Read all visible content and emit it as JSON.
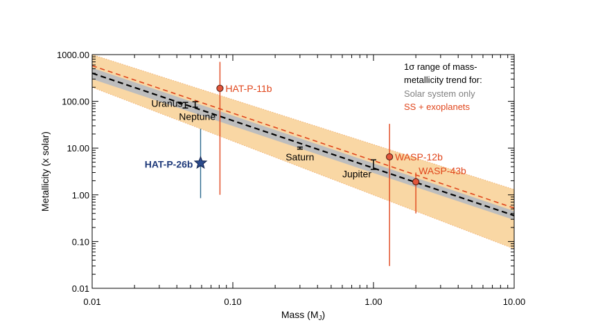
{
  "chart_data": {
    "type": "scatter",
    "title": "",
    "xlabel": "Mass (Mj)",
    "xlabel_main": "Mass (M",
    "xlabel_sub": "J",
    "xlabel_close": ")",
    "ylabel": "Metallicity (x solar)",
    "x_scale": "log",
    "y_scale": "log",
    "xlim": [
      0.01,
      10
    ],
    "ylim": [
      0.01,
      1000
    ],
    "x_ticks": [
      0.01,
      0.1,
      1,
      10
    ],
    "x_tick_labels": [
      "0.01",
      "0.10",
      "1.00",
      "10.00"
    ],
    "y_ticks": [
      0.01,
      0.1,
      1,
      10,
      100,
      1000
    ],
    "y_tick_labels": [
      "0.01",
      "0.10",
      "1.00",
      "10.00",
      "100.00",
      "1000.00"
    ],
    "legend": {
      "placement": "top-right",
      "lines": [
        "1σ range of mass-",
        "metallicity trend for:",
        "Solar system only",
        "SS + exoplanets"
      ],
      "line_colors": [
        "#000000",
        "#000000",
        "#808080",
        "#e0451b"
      ]
    },
    "trends": [
      {
        "name": "Solar system only",
        "color": "#000000",
        "band_color": "#bdbdbd",
        "x": [
          0.01,
          10
        ],
        "y": [
          400,
          0.36
        ],
        "band_low": [
          300,
          0.29
        ],
        "band_high": [
          520,
          0.45
        ]
      },
      {
        "name": "SS + exoplanets",
        "color": "#e0451b",
        "band_color": "#f9d7a4",
        "x": [
          0.01,
          10
        ],
        "y": [
          580,
          0.52
        ],
        "band_low": [
          200,
          0.07
        ],
        "band_high": [
          1000,
          1.3
        ]
      }
    ],
    "solar_system": [
      {
        "name": "Uranus",
        "x": 0.046,
        "y": 82,
        "y_low": 72,
        "y_high": 95
      },
      {
        "name": "Neptune",
        "x": 0.054,
        "y": 85,
        "y_low": 75,
        "y_high": 98
      },
      {
        "name": "Saturn",
        "x": 0.3,
        "y": 10,
        "y_low": 9.5,
        "y_high": 10.5
      },
      {
        "name": "Jupiter",
        "x": 1.0,
        "y": 4.5,
        "y_low": 3.5,
        "y_high": 5.6
      }
    ],
    "exoplanets": [
      {
        "name": "HAT-P-11b",
        "x": 0.081,
        "y": 190,
        "y_low": 1.0,
        "y_high": 700
      },
      {
        "name": "WASP-12b",
        "x": 1.3,
        "y": 6.5,
        "y_low": 0.03,
        "y_high": 33
      },
      {
        "name": "WASP-43b",
        "x": 2.0,
        "y": 1.9,
        "y_low": 0.4,
        "y_high": 3.0
      }
    ],
    "highlight": {
      "name": "HAT-P-26b",
      "x": 0.059,
      "y": 4.8,
      "y_low": 0.85,
      "y_high": 26
    },
    "colors": {
      "exoplanet": "#e0451b",
      "exoplanet_marker": "#e2553a",
      "highlight": "#1f3a7a",
      "highlight_errorbar": "#2d6a8f",
      "band_edge": "#f0b070",
      "solar": "#000000"
    }
  }
}
